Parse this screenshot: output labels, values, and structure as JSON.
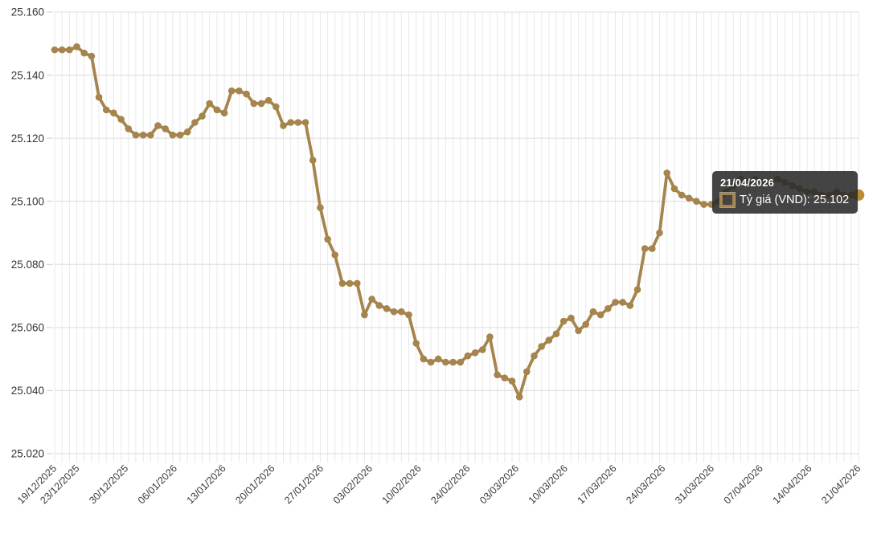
{
  "chart": {
    "tooltip": {
      "date": "21/04/2026",
      "series_value_text": "Tỷ giá (VND): 25.102"
    },
    "colors": {
      "line": "#A5854D",
      "point": "#A5854D",
      "highlight_point": "#BE8B35",
      "grid_vertical": "#e9e9e9",
      "grid_horizontal": "#dcdcdc",
      "tick": "#cfcfcf",
      "axis_text": "#333333",
      "tooltip_bg": "#2a2a2a"
    }
  },
  "chart_data": {
    "type": "line",
    "title": "",
    "xlabel": "",
    "ylabel": "",
    "legend_position": "tooltip-only",
    "grid": true,
    "ylim": [
      25020,
      25160
    ],
    "y_tick_values": [
      25160,
      25140,
      25120,
      25100,
      25080,
      25060,
      25040,
      25020
    ],
    "y_tick_labels": [
      "25.160",
      "25.140",
      "25.120",
      "25.100",
      "25.080",
      "25.060",
      "25.040",
      "25.020"
    ],
    "x_tick_labels": [
      "19/12/2025",
      "23/12/2025",
      "30/12/2025",
      "06/01/2026",
      "13/01/2026",
      "20/01/2026",
      "27/01/2026",
      "03/02/2026",
      "10/02/2026",
      "24/02/2026",
      "03/03/2026",
      "10/03/2026",
      "17/03/2026",
      "24/03/2026",
      "31/03/2026",
      "07/04/2026",
      "14/04/2026",
      "21/04/2026"
    ],
    "series": [
      {
        "name": "Tỷ giá (VND)",
        "color": "#A5854D",
        "values": [
          25148,
          25148,
          25148,
          25149,
          25147,
          25146,
          25133,
          25129,
          25128,
          25126,
          25123,
          25121,
          25121,
          25121,
          25124,
          25123,
          25121,
          25121,
          25122,
          25125,
          25127,
          25131,
          25129,
          25128,
          25135,
          25135,
          25134,
          25131,
          25131,
          25132,
          25130,
          25124,
          25125,
          25125,
          25125,
          25113,
          25098,
          25088,
          25083,
          25074,
          25074,
          25074,
          25064,
          25069,
          25067,
          25066,
          25065,
          25065,
          25064,
          25055,
          25050,
          25049,
          25050,
          25049,
          25049,
          25049,
          25051,
          25052,
          25053,
          25057,
          25045,
          25044,
          25043,
          25038,
          25046,
          25051,
          25054,
          25056,
          25058,
          25062,
          25063,
          25059,
          25061,
          25065,
          25064,
          25066,
          25068,
          25068,
          25067,
          25072,
          25085,
          25085,
          25090,
          25109,
          25104,
          25102,
          25101,
          25100,
          25099,
          25099,
          25100,
          25103,
          25105,
          25107,
          25106,
          25107,
          25106,
          25106,
          25107,
          25106,
          25105,
          25104,
          25103,
          25103,
          25102,
          25102,
          25103,
          25102,
          25102,
          25102
        ]
      }
    ],
    "highlighted_point": {
      "x_label": "21/04/2026",
      "value": 25102,
      "position": "last"
    }
  }
}
